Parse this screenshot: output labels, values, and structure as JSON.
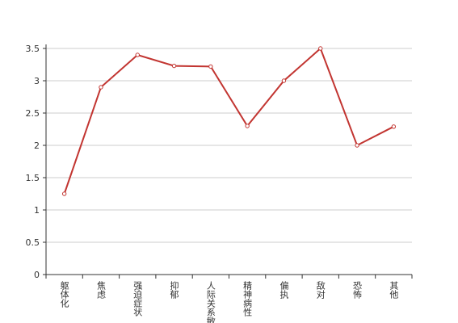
{
  "chart_data": {
    "type": "line",
    "categories": [
      "躯体化",
      "焦虑",
      "强迫症状",
      "抑郁",
      "人际关系敏感",
      "精神病性",
      "偏执",
      "敌对",
      "恐怖",
      "其他"
    ],
    "series": [
      {
        "name": "",
        "color": "#c23531",
        "values": [
          1.25,
          2.9,
          3.4,
          3.23,
          3.22,
          2.3,
          3.0,
          3.5,
          2.0,
          2.29
        ]
      }
    ],
    "ylim": [
      0,
      3.5
    ],
    "yticks": [
      0,
      0.5,
      1,
      1.5,
      2,
      2.5,
      3,
      3.5
    ],
    "grid": true
  }
}
